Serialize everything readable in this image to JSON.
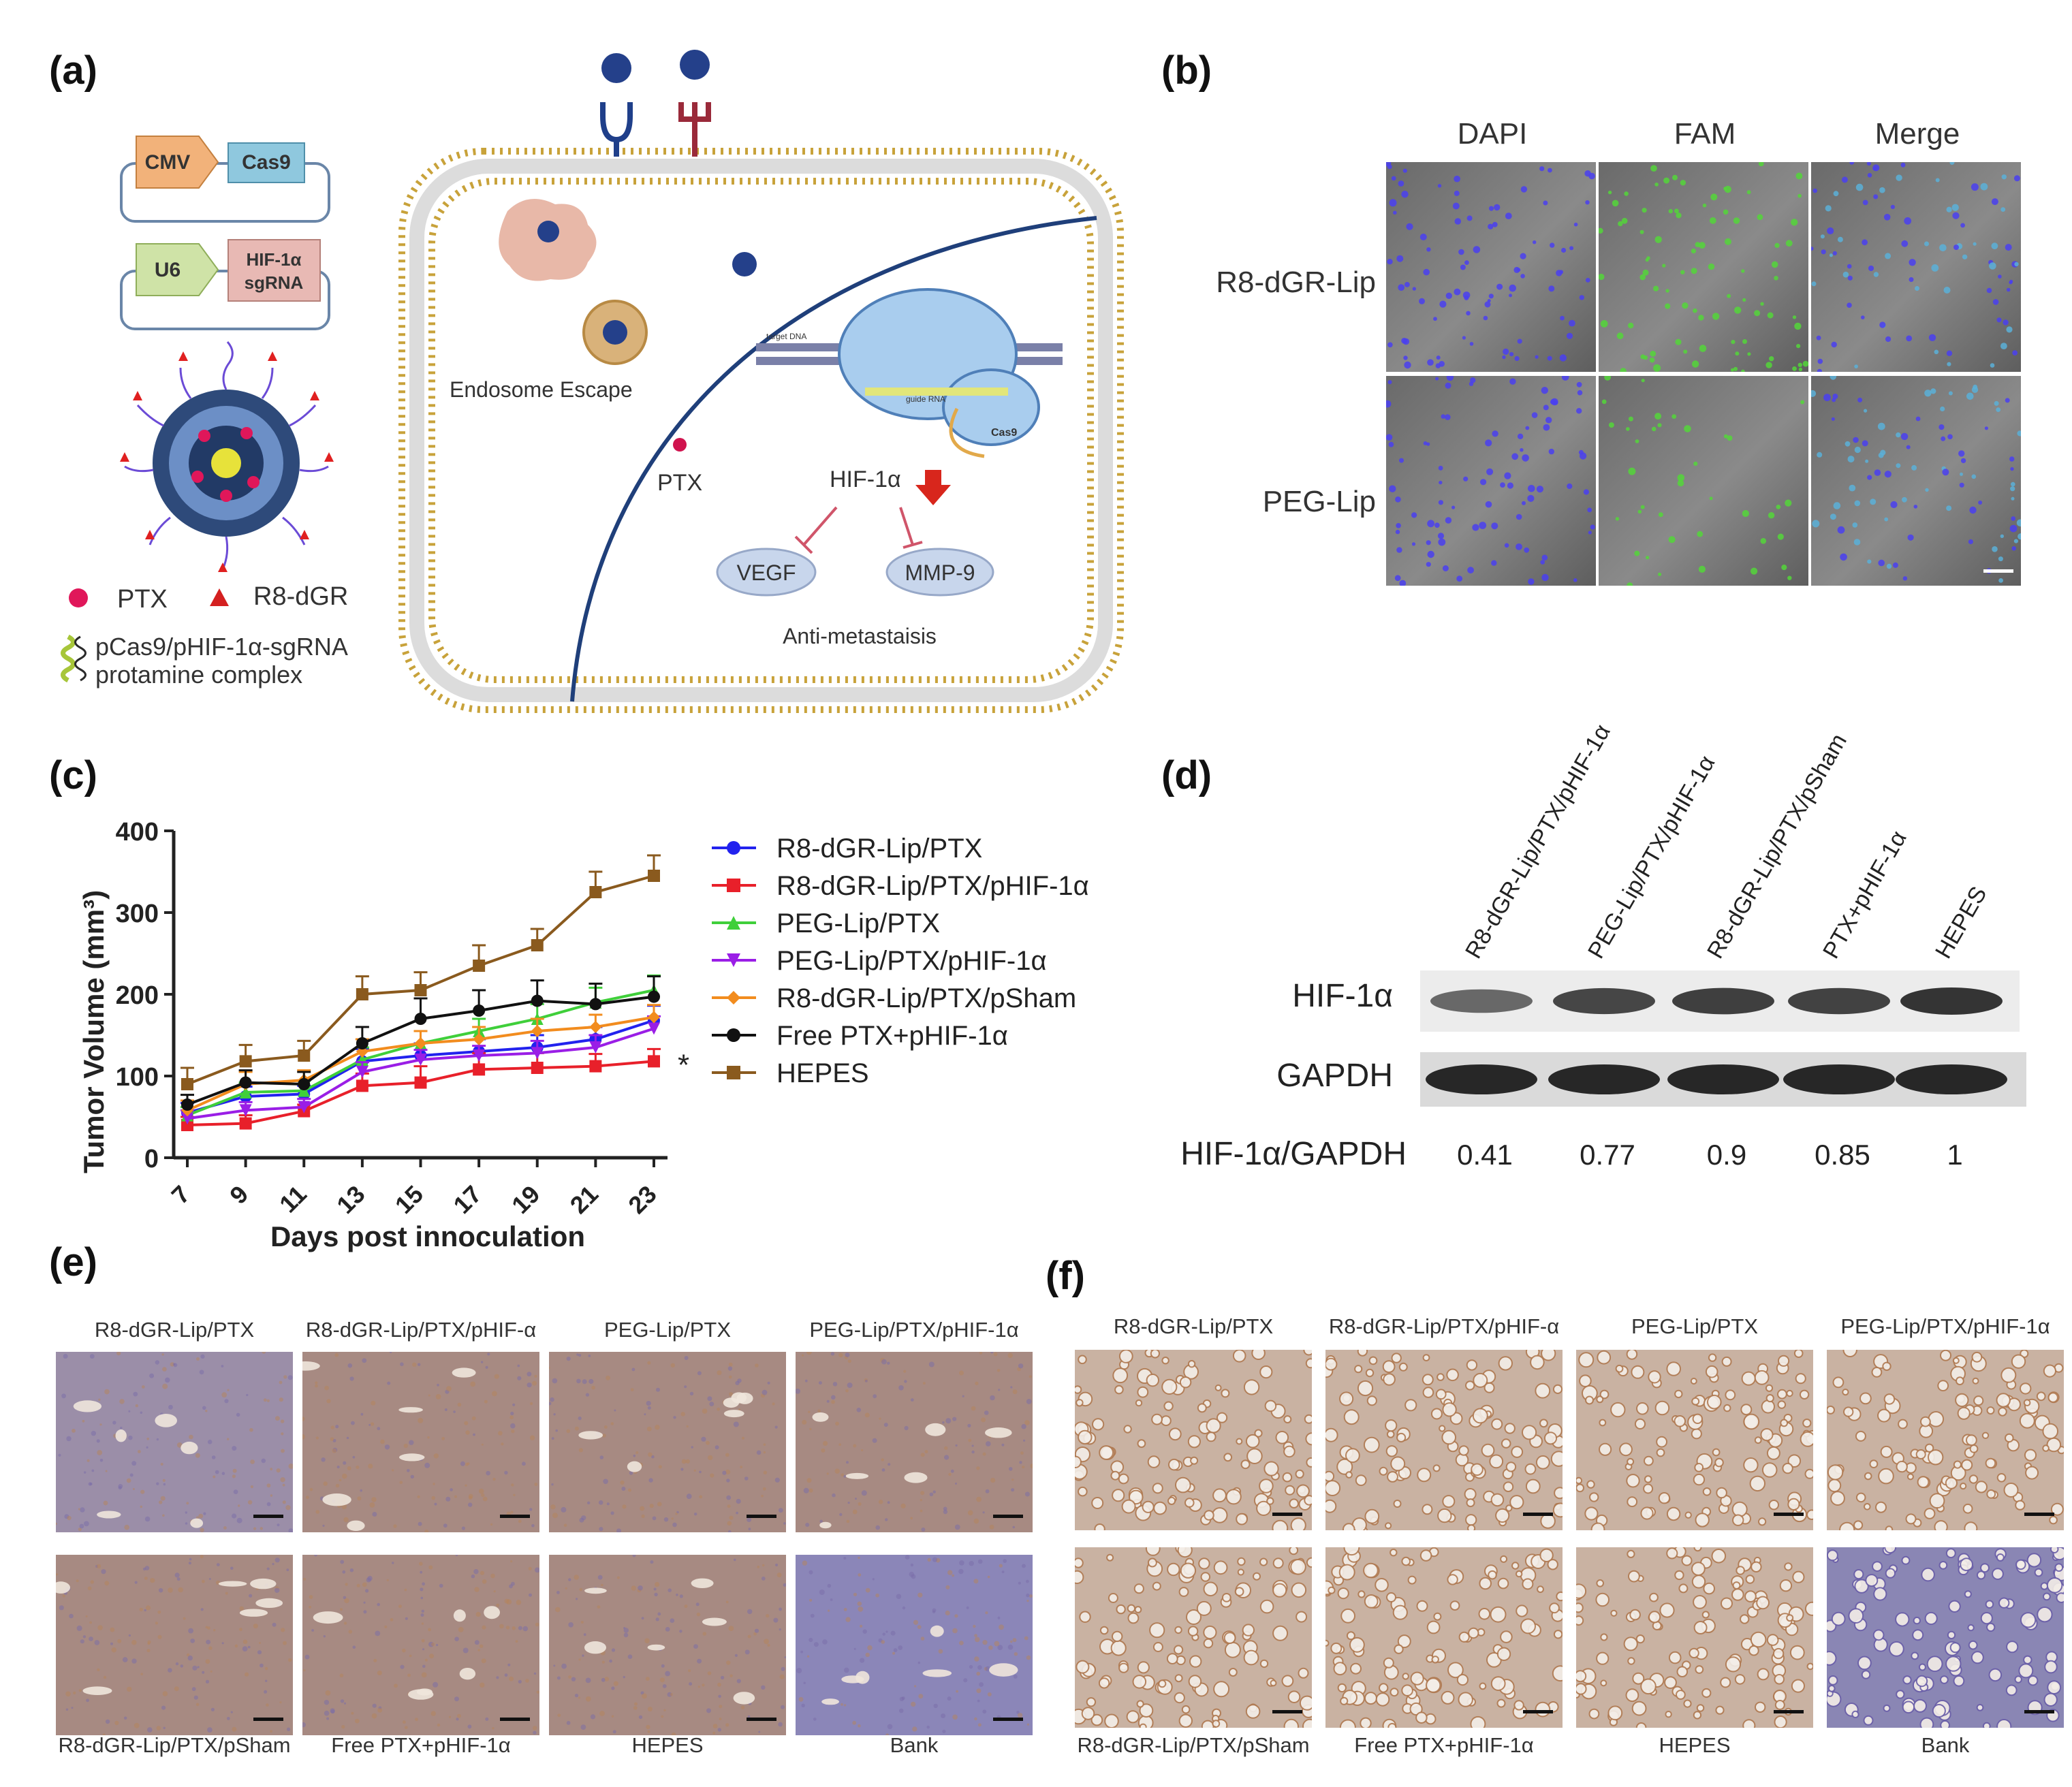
{
  "panels": {
    "a": {
      "letter": "(a)",
      "plasmids": [
        {
          "promoter": "CMV",
          "gene": "Cas9"
        },
        {
          "promoter": "U6",
          "gene_line1": "HIF-1α",
          "gene_line2": "sgRNA"
        }
      ],
      "legend": {
        "ptx": "PTX",
        "r8dgr": "R8-dGR",
        "complex_line1": "pCas9/pHIF-1α-sgRNA",
        "complex_line2": "protamine complex"
      },
      "cell": {
        "endosome_escape": "Endosome Escape",
        "ptx": "PTX",
        "hif": "HIF-1α",
        "vegf": "VEGF",
        "mmp9": "MMP-9",
        "anti_metastasis": "Anti-metastaisis",
        "cas9_label": "Cas9",
        "target_dna": "target DNA",
        "guide_rna": "guide RNA"
      },
      "colors": {
        "cmv": "#f2b27a",
        "cas9": "#8fc8de",
        "u6": "#cfe3a7",
        "sgrna": "#e8b9b4",
        "membrane": "#c8a23a",
        "nucleus_line": "#1f3f7a"
      }
    },
    "b": {
      "letter": "(b)",
      "columns": [
        "DAPI",
        "FAM",
        "Merge"
      ],
      "column_colors": [
        "#3d35e8",
        "#4fd23a",
        "#222222"
      ],
      "rows": [
        "R8-dGR-Lip",
        "PEG-Lip"
      ]
    },
    "c": {
      "letter": "(c)"
    },
    "d": {
      "letter": "(d)",
      "lanes": [
        "R8-dGR-Lip/PTX/pHIF-1α",
        "PEG-Lip/PTX/pHIF-1α",
        "R8-dGR-Lip/PTX/pSham",
        "PTX+pHIF-1α",
        "HEPES"
      ],
      "rows": [
        "HIF-1α",
        "GAPDH"
      ],
      "ratio_label": "HIF-1α/GAPDH",
      "ratios": [
        "0.41",
        "0.77",
        "0.9",
        "0.85",
        "1"
      ]
    },
    "e": {
      "letter": "(e)",
      "top_labels": [
        "R8-dGR-Lip/PTX",
        "R8-dGR-Lip/PTX/pHIF-α",
        "PEG-Lip/PTX",
        "PEG-Lip/PTX/pHIF-1α"
      ],
      "bottom_labels": [
        "R8-dGR-Lip/PTX/pSham",
        "Free PTX+pHIF-1α",
        "HEPES",
        "Bank"
      ]
    },
    "f": {
      "letter": "(f)",
      "top_labels": [
        "R8-dGR-Lip/PTX",
        "R8-dGR-Lip/PTX/pHIF-α",
        "PEG-Lip/PTX",
        "PEG-Lip/PTX/pHIF-1α"
      ],
      "bottom_labels": [
        "R8-dGR-Lip/PTX/pSham",
        "Free PTX+pHIF-1α",
        "HEPES",
        "Bank"
      ]
    }
  },
  "chart_data": {
    "type": "line",
    "xlabel": "Days post innoculation",
    "ylabel": "Tumor Volume (mm³)",
    "x": [
      7,
      9,
      11,
      13,
      15,
      17,
      19,
      21,
      23
    ],
    "ylim": [
      0,
      400
    ],
    "yticks": [
      0,
      100,
      200,
      300,
      400
    ],
    "significance_mark": "*",
    "legend_position": "right",
    "series": [
      {
        "name": "R8-dGR-Lip/PTX",
        "color": "#2222ee",
        "marker": "circle",
        "values": [
          55,
          75,
          78,
          118,
          125,
          130,
          135,
          145,
          168
        ],
        "err": [
          12,
          12,
          10,
          15,
          15,
          15,
          15,
          15,
          18
        ]
      },
      {
        "name": "R8-dGR-Lip/PTX/pHIF-1α",
        "color": "#e8202a",
        "marker": "square",
        "values": [
          40,
          42,
          57,
          88,
          92,
          108,
          110,
          112,
          118
        ],
        "err": [
          10,
          10,
          8,
          15,
          20,
          20,
          18,
          15,
          15
        ]
      },
      {
        "name": "PEG-Lip/PTX",
        "color": "#3fcf3a",
        "marker": "triangle-up",
        "values": [
          52,
          80,
          82,
          120,
          140,
          155,
          170,
          190,
          205
        ],
        "err": [
          10,
          12,
          12,
          15,
          15,
          15,
          18,
          18,
          18
        ]
      },
      {
        "name": "PEG-Lip/PTX/pHIF-1α",
        "color": "#9a1ee6",
        "marker": "triangle-down",
        "values": [
          48,
          58,
          62,
          105,
          120,
          125,
          128,
          135,
          158
        ],
        "err": [
          10,
          10,
          10,
          12,
          12,
          12,
          15,
          15,
          15
        ]
      },
      {
        "name": "R8-dGR-Lip/PTX/pSham",
        "color": "#f28c1e",
        "marker": "diamond",
        "values": [
          58,
          90,
          95,
          130,
          140,
          145,
          155,
          160,
          172
        ],
        "err": [
          12,
          15,
          12,
          15,
          15,
          15,
          15,
          15,
          15
        ]
      },
      {
        "name": "Free PTX+pHIF-1α",
        "color": "#111111",
        "marker": "hexagon",
        "values": [
          65,
          92,
          90,
          140,
          170,
          180,
          192,
          188,
          197
        ],
        "err": [
          12,
          15,
          15,
          20,
          25,
          25,
          25,
          25,
          25
        ]
      },
      {
        "name": "HEPES",
        "color": "#8a5a1e",
        "marker": "square",
        "values": [
          90,
          118,
          125,
          200,
          205,
          235,
          260,
          325,
          345
        ],
        "err": [
          20,
          20,
          18,
          22,
          22,
          25,
          20,
          25,
          25
        ]
      }
    ]
  }
}
